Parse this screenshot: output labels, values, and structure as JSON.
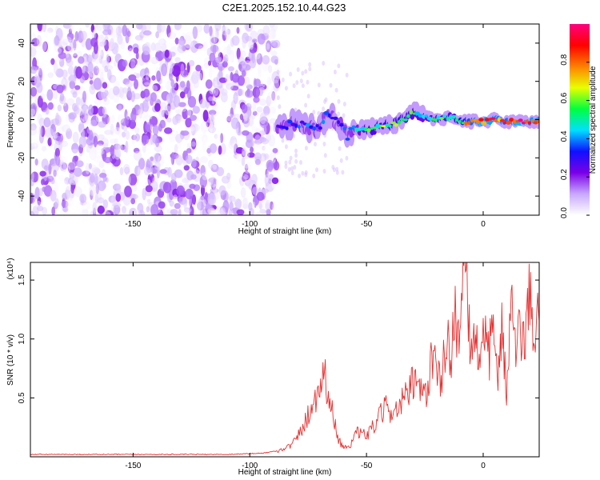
{
  "title": "C2E1.2025.152.10.44.G23",
  "chart_data": [
    {
      "type": "heatmap",
      "xlabel": "Height of straight line (km)",
      "ylabel": "Frequency (Hz)",
      "xlim": [
        -194,
        24
      ],
      "ylim": [
        -50,
        50
      ],
      "xticks": [
        -150,
        -100,
        -50,
        0
      ],
      "yticks": [
        -40,
        -20,
        0,
        20,
        40
      ],
      "colorbar": {
        "label": "Normalized spectral amplitude",
        "range": [
          0.0,
          1.0
        ],
        "ticks": [
          0.0,
          0.2,
          0.4,
          0.6,
          0.8
        ],
        "colormap": [
          "#ffffff",
          "#c9a8ff",
          "#7a00e6",
          "#1010ff",
          "#00e0ff",
          "#00ff40",
          "#e8ff00",
          "#ff8000",
          "#ff0000",
          "#ff0080"
        ]
      },
      "noise_region": {
        "x_range": [
          -194,
          -88
        ],
        "freq_range": [
          -50,
          50
        ],
        "amplitude_range": [
          0.0,
          0.2
        ]
      },
      "signal_trace": {
        "x": [
          -88,
          -80,
          -72,
          -66,
          -62,
          -58,
          -54,
          -50,
          -45,
          -40,
          -35,
          -30,
          -26,
          -22,
          -18,
          -14,
          -10,
          -5,
          0,
          5,
          10,
          15,
          20,
          24
        ],
        "frequency": [
          -4,
          -2,
          -5,
          3,
          -2,
          -8,
          -5,
          -5,
          -4,
          -3,
          -1,
          4,
          2,
          0,
          0,
          2,
          -1,
          -1,
          -1,
          0,
          -1,
          -1,
          -1,
          -1
        ],
        "amplitude": [
          0.3,
          0.35,
          0.4,
          0.35,
          0.3,
          0.4,
          0.45,
          0.55,
          0.6,
          0.65,
          0.6,
          0.55,
          0.5,
          0.55,
          0.6,
          0.55,
          0.7,
          0.85,
          0.95,
          0.9,
          0.85,
          0.95,
          0.9,
          0.9
        ]
      }
    },
    {
      "type": "line",
      "xlabel": "Height of straight line (km)",
      "ylabel": "SNR (10 * v/v)",
      "y_multiplier_label": "(x10⁴)",
      "xlim": [
        -194,
        24
      ],
      "ylim": [
        0,
        1.65
      ],
      "xticks": [
        -150,
        -100,
        -50,
        0
      ],
      "yticks": [
        0.5,
        1.0,
        1.5
      ],
      "color": "#e83030",
      "series": [
        {
          "x": [
            -194,
            -170,
            -150,
            -130,
            -110,
            -95,
            -88,
            -82,
            -78,
            -74,
            -71,
            -68,
            -66,
            -64,
            -62,
            -60,
            -57,
            -54,
            -50,
            -46,
            -42,
            -38,
            -34,
            -30,
            -27,
            -24,
            -22,
            -20,
            -18,
            -16,
            -14,
            -12,
            -10,
            -8,
            -6,
            -4,
            -2,
            0,
            2,
            4,
            6,
            8,
            10,
            12,
            14,
            16,
            18,
            20,
            22,
            24
          ],
          "y": [
            0.02,
            0.02,
            0.02,
            0.02,
            0.02,
            0.03,
            0.05,
            0.1,
            0.22,
            0.4,
            0.55,
            0.72,
            0.5,
            0.32,
            0.15,
            0.08,
            0.1,
            0.2,
            0.18,
            0.28,
            0.42,
            0.38,
            0.48,
            0.62,
            0.55,
            0.5,
            0.95,
            0.7,
            0.6,
            1.0,
            0.85,
            1.25,
            0.95,
            1.6,
            1.05,
            0.95,
            0.9,
            1.1,
            0.8,
            1.05,
            0.65,
            1.2,
            0.5,
            1.35,
            0.8,
            1.1,
            0.95,
            1.35,
            1.05,
            1.15
          ]
        }
      ]
    }
  ]
}
